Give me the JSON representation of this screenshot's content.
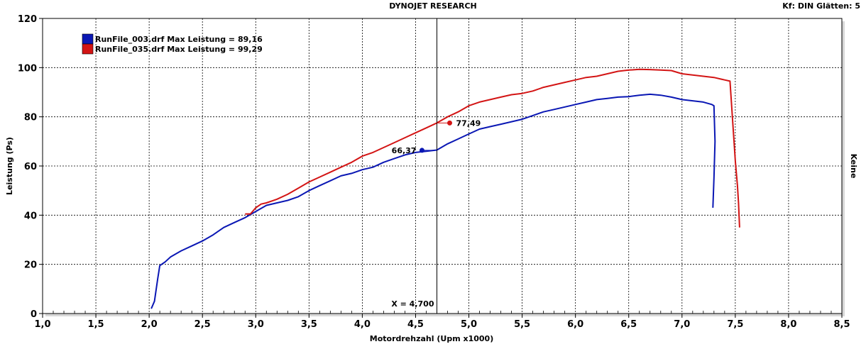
{
  "header": {
    "title": "DYNOJET RESEARCH",
    "right": "Kf: DIN  Glätten: 5"
  },
  "chart_data": {
    "type": "line",
    "xlabel": "Motordrehzahl (Upm x1000)",
    "ylabel": "Leistung (Ps)",
    "right_label": "Keine",
    "xlim": [
      1.0,
      8.5
    ],
    "ylim": [
      0,
      120
    ],
    "xticks": [
      "1,0",
      "1,5",
      "2,0",
      "2,5",
      "3,0",
      "3,5",
      "4,0",
      "4,5",
      "5,0",
      "5,5",
      "6,0",
      "6,5",
      "7,0",
      "7,5",
      "8,0",
      "8,5"
    ],
    "yticks": [
      "0",
      "20",
      "40",
      "60",
      "80",
      "100",
      "120"
    ],
    "grid": true,
    "legend_position": "top-left",
    "cursor": {
      "x": 4.7,
      "label": "X = 4,700"
    },
    "series": [
      {
        "name": "RunFile_003.drf Max Leistung = 89,16",
        "color": "#0a17b4",
        "marker": {
          "x": 4.56,
          "y": 66.37,
          "label": "66,37"
        },
        "x": [
          2.02,
          2.05,
          2.08,
          2.1,
          2.15,
          2.2,
          2.3,
          2.4,
          2.5,
          2.6,
          2.7,
          2.8,
          2.9,
          3.0,
          3.1,
          3.2,
          3.3,
          3.4,
          3.5,
          3.6,
          3.7,
          3.8,
          3.9,
          4.0,
          4.1,
          4.2,
          4.3,
          4.4,
          4.5,
          4.6,
          4.7,
          4.8,
          4.9,
          5.0,
          5.1,
          5.2,
          5.3,
          5.4,
          5.5,
          5.6,
          5.7,
          5.8,
          5.9,
          6.0,
          6.1,
          6.2,
          6.3,
          6.4,
          6.5,
          6.6,
          6.7,
          6.8,
          6.9,
          7.0,
          7.1,
          7.2,
          7.28,
          7.3,
          7.31,
          7.3,
          7.29
        ],
        "y": [
          2,
          5,
          14,
          19.5,
          21,
          23,
          25.5,
          27.5,
          29.5,
          32,
          35,
          37,
          39,
          41.5,
          44,
          45,
          46,
          47.5,
          50,
          52,
          54,
          56,
          57,
          58.5,
          59.5,
          61.5,
          63,
          64.5,
          65.5,
          66,
          66.5,
          69,
          71,
          73,
          75,
          76,
          77,
          78,
          79,
          80.5,
          82,
          83,
          84,
          85,
          86,
          87,
          87.5,
          88,
          88.2,
          88.8,
          89.16,
          88.8,
          88,
          87,
          86.5,
          86,
          85,
          84.5,
          70,
          55,
          43
        ]
      },
      {
        "name": "RunFile_035.drf Max Leistung = 99,29",
        "color": "#d31414",
        "marker": {
          "x": 4.82,
          "y": 77.49,
          "label": "77,49"
        },
        "x": [
          2.9,
          2.95,
          3.0,
          3.05,
          3.1,
          3.2,
          3.3,
          3.4,
          3.5,
          3.6,
          3.7,
          3.8,
          3.9,
          4.0,
          4.1,
          4.2,
          4.3,
          4.4,
          4.5,
          4.6,
          4.7,
          4.8,
          4.9,
          5.0,
          5.1,
          5.2,
          5.3,
          5.4,
          5.5,
          5.6,
          5.7,
          5.8,
          5.9,
          6.0,
          6.1,
          6.2,
          6.3,
          6.4,
          6.5,
          6.6,
          6.7,
          6.8,
          6.9,
          7.0,
          7.1,
          7.2,
          7.3,
          7.4,
          7.45,
          7.46,
          7.48,
          7.5,
          7.52,
          7.53,
          7.54
        ],
        "y": [
          40.5,
          40.5,
          43,
          44.5,
          45,
          46.5,
          48.5,
          51,
          53.5,
          55.5,
          57.5,
          59.5,
          61.5,
          64,
          65.5,
          67.5,
          69.5,
          71.5,
          73.5,
          75.5,
          77.5,
          80,
          82,
          84.5,
          86,
          87,
          88,
          89,
          89.5,
          90.5,
          92,
          93,
          94,
          95,
          96,
          96.5,
          97.5,
          98.5,
          99,
          99.29,
          99.2,
          99,
          98.8,
          97.5,
          97,
          96.5,
          96,
          95,
          94.5,
          88,
          75,
          62,
          52,
          45,
          35
        ]
      }
    ]
  }
}
